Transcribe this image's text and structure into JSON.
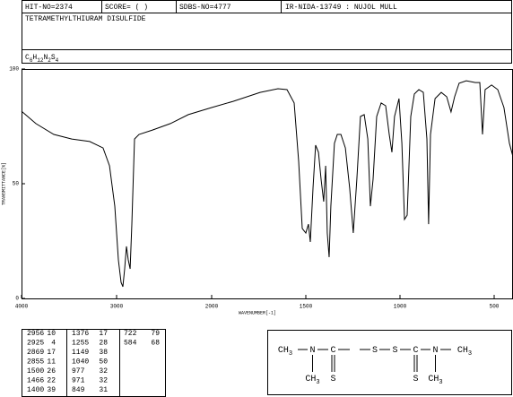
{
  "header": {
    "hit_no": "HIT-NO=2374",
    "score": "SCORE=  (  )",
    "sdbs_no": "SDBS-NO=4777",
    "source": "IR-NIDA-13749 : NUJOL MULL",
    "name": "TETRAMETHYLTHIURAM DISULFIDE",
    "formula": [
      "C",
      "6",
      "H",
      "12",
      "N",
      "2",
      "S",
      "4"
    ]
  },
  "chart_data": {
    "type": "line",
    "xlabel": "WAVENUMBER[-1]",
    "ylabel": "TRANSMITTANCE[%]",
    "color": "#000000",
    "xlim": [
      4000,
      400
    ],
    "xscale_break": 2000,
    "xticks": [
      4000,
      3000,
      2000,
      1500,
      1000,
      500
    ],
    "ylim": [
      0,
      100
    ],
    "yticks": [
      0,
      50,
      100
    ],
    "x": [
      4000,
      3849,
      3660,
      3472,
      3283,
      3142,
      3075,
      3019,
      2981,
      2953,
      2934,
      2915,
      2896,
      2877,
      2858,
      2840,
      2811,
      2764,
      2623,
      2434,
      2245,
      2000,
      1886,
      1743,
      1648,
      1600,
      1562,
      1538,
      1519,
      1500,
      1486,
      1476,
      1462,
      1448,
      1433,
      1419,
      1405,
      1395,
      1386,
      1376,
      1367,
      1348,
      1333,
      1314,
      1290,
      1267,
      1248,
      1229,
      1210,
      1190,
      1171,
      1157,
      1143,
      1124,
      1100,
      1076,
      1057,
      1043,
      1029,
      1005,
      990,
      976,
      962,
      943,
      924,
      900,
      876,
      857,
      848,
      838,
      814,
      781,
      752,
      729,
      710,
      686,
      648,
      600,
      576,
      562,
      548,
      514,
      481,
      448,
      419,
      400
    ],
    "values": [
      81.6,
      76.2,
      71.5,
      69.5,
      68.4,
      65.6,
      57.8,
      40.2,
      16.8,
      7.0,
      5.1,
      12.9,
      22.7,
      16.8,
      12.9,
      32.4,
      69.5,
      71.5,
      73.4,
      76.2,
      80.1,
      83.2,
      85.9,
      89.8,
      91.4,
      91.0,
      85.2,
      59.8,
      30.5,
      28.5,
      32.4,
      24.6,
      48.0,
      66.8,
      63.7,
      52.0,
      42.2,
      57.8,
      28.5,
      18.0,
      40.2,
      67.6,
      71.5,
      71.5,
      65.6,
      48.0,
      28.5,
      52.0,
      79.3,
      80.1,
      69.5,
      40.2,
      52.0,
      79.3,
      85.2,
      84.0,
      71.5,
      63.7,
      79.3,
      87.1,
      67.6,
      34.4,
      36.3,
      79.3,
      89.1,
      91.0,
      89.8,
      69.5,
      32.4,
      71.5,
      87.1,
      89.8,
      87.9,
      81.3,
      87.9,
      93.8,
      94.9,
      94.1,
      94.1,
      71.5,
      91.0,
      93.0,
      91.0,
      83.2,
      67.6,
      61.7
    ]
  },
  "peaks": [
    [
      [
        2956,
        10
      ],
      [
        2925,
        4
      ],
      [
        2869,
        17
      ],
      [
        2855,
        11
      ],
      [
        1500,
        26
      ],
      [
        1466,
        22
      ],
      [
        1400,
        39
      ]
    ],
    [
      [
        1376,
        17
      ],
      [
        1255,
        28
      ],
      [
        1149,
        38
      ],
      [
        1040,
        50
      ],
      [
        977,
        32
      ],
      [
        971,
        32
      ],
      [
        849,
        31
      ]
    ],
    [
      [
        722,
        79
      ],
      [
        584,
        68
      ]
    ]
  ],
  "structure": {
    "atoms": [
      {
        "label": "CH",
        "sub": "3"
      },
      {
        "label": "N"
      },
      {
        "label": "C"
      },
      {
        "label": "S"
      },
      {
        "label": "S"
      },
      {
        "label": "C"
      },
      {
        "label": "N"
      },
      {
        "label": "CH",
        "sub": "3"
      },
      {
        "label": "CH",
        "sub": "3"
      },
      {
        "label": "S"
      },
      {
        "label": "S"
      },
      {
        "label": "CH",
        "sub": "3"
      }
    ]
  }
}
